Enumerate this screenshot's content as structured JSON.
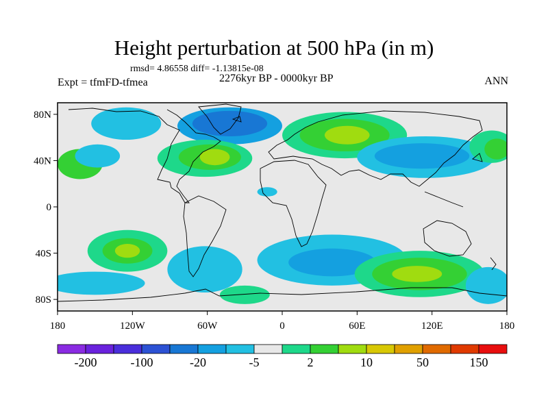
{
  "title": "Height perturbation at 500 hPa (in m)",
  "stats": "rmsd= 4.86558 diff= -1.13815e-08",
  "left_label": "Expt = tfmFD-tfmea",
  "center_label": "2276kyr BP - 0000kyr BP",
  "right_label": "ANN",
  "map": {
    "lon_range": [
      -180,
      180
    ],
    "lat_range": [
      -90,
      90
    ],
    "x_ticks": [
      {
        "value": -180,
        "label": "180"
      },
      {
        "value": -120,
        "label": "120W"
      },
      {
        "value": -60,
        "label": "60W"
      },
      {
        "value": 0,
        "label": "0"
      },
      {
        "value": 60,
        "label": "60E"
      },
      {
        "value": 120,
        "label": "120E"
      },
      {
        "value": 180,
        "label": "180"
      }
    ],
    "y_ticks": [
      {
        "value": 80,
        "label": "80N"
      },
      {
        "value": 40,
        "label": "40N"
      },
      {
        "value": 0,
        "label": "0"
      },
      {
        "value": -40,
        "label": "40S"
      },
      {
        "value": -80,
        "label": "80S"
      }
    ],
    "background_color": "#e8e8e8",
    "anomalies": [
      {
        "lon": -125,
        "lat": 72,
        "rx": 28,
        "ry": 14,
        "level": -5
      },
      {
        "lon": -42,
        "lat": 70,
        "rx": 42,
        "ry": 16,
        "level": -10
      },
      {
        "lon": -42,
        "lat": 72,
        "rx": 30,
        "ry": 11,
        "level": -20
      },
      {
        "lon": -162,
        "lat": 37,
        "rx": 18,
        "ry": 13,
        "level": 5
      },
      {
        "lon": -148,
        "lat": 44,
        "rx": 18,
        "ry": 10,
        "level": -5
      },
      {
        "lon": -62,
        "lat": 42,
        "rx": 38,
        "ry": 16,
        "level": 2
      },
      {
        "lon": -58,
        "lat": 43,
        "rx": 25,
        "ry": 11,
        "level": 5
      },
      {
        "lon": -54,
        "lat": 43,
        "rx": 12,
        "ry": 7,
        "level": 10
      },
      {
        "lon": -12,
        "lat": 13,
        "rx": 8,
        "ry": 4,
        "level": -5
      },
      {
        "lon": 50,
        "lat": 62,
        "rx": 50,
        "ry": 20,
        "level": 2
      },
      {
        "lon": 50,
        "lat": 62,
        "rx": 36,
        "ry": 14,
        "level": 5
      },
      {
        "lon": 52,
        "lat": 62,
        "rx": 18,
        "ry": 8,
        "level": 10
      },
      {
        "lon": 115,
        "lat": 43,
        "rx": 55,
        "ry": 18,
        "level": -5
      },
      {
        "lon": 112,
        "lat": 44,
        "rx": 38,
        "ry": 11,
        "level": -10
      },
      {
        "lon": 168,
        "lat": 52,
        "rx": 18,
        "ry": 14,
        "level": 2
      },
      {
        "lon": 172,
        "lat": 50,
        "rx": 10,
        "ry": 9,
        "level": 5
      },
      {
        "lon": -124,
        "lat": -38,
        "rx": 32,
        "ry": 18,
        "level": 2
      },
      {
        "lon": -124,
        "lat": -38,
        "rx": 20,
        "ry": 11,
        "level": 5
      },
      {
        "lon": -124,
        "lat": -38,
        "rx": 10,
        "ry": 6,
        "level": 10
      },
      {
        "lon": -150,
        "lat": -66,
        "rx": 40,
        "ry": 10,
        "level": -5
      },
      {
        "lon": -62,
        "lat": -54,
        "rx": 30,
        "ry": 20,
        "level": -5
      },
      {
        "lon": -30,
        "lat": -76,
        "rx": 20,
        "ry": 8,
        "level": 2
      },
      {
        "lon": 40,
        "lat": -46,
        "rx": 60,
        "ry": 22,
        "level": -5
      },
      {
        "lon": 40,
        "lat": -48,
        "rx": 35,
        "ry": 12,
        "level": -10
      },
      {
        "lon": 110,
        "lat": -58,
        "rx": 52,
        "ry": 20,
        "level": 2
      },
      {
        "lon": 110,
        "lat": -58,
        "rx": 38,
        "ry": 14,
        "level": 5
      },
      {
        "lon": 108,
        "lat": -58,
        "rx": 20,
        "ry": 7,
        "level": 10
      },
      {
        "lon": 165,
        "lat": -68,
        "rx": 18,
        "ry": 16,
        "level": -5
      }
    ]
  },
  "colorbar": {
    "colors": [
      "#8a2be2",
      "#6a22dd",
      "#4a2edb",
      "#2c52d4",
      "#1877d4",
      "#14a0e0",
      "#22c0e2",
      "#e8e8e8",
      "#1ed88a",
      "#34d034",
      "#a0dc10",
      "#d8c804",
      "#e0a000",
      "#e06a00",
      "#e03a00",
      "#e80e0e"
    ],
    "labels": [
      {
        "boundary": 1,
        "text": "-200"
      },
      {
        "boundary": 3,
        "text": "-100"
      },
      {
        "boundary": 5,
        "text": "-20"
      },
      {
        "boundary": 7,
        "text": "-5"
      },
      {
        "boundary": 9,
        "text": "2"
      },
      {
        "boundary": 11,
        "text": "10"
      },
      {
        "boundary": 13,
        "text": "50"
      },
      {
        "boundary": 15,
        "text": "150"
      }
    ],
    "level_colors": {
      "-20": "#1877d4",
      "-10": "#14a0e0",
      "-5": "#22c0e2",
      "2": "#1ed88a",
      "5": "#34d034",
      "10": "#a0dc10"
    }
  }
}
